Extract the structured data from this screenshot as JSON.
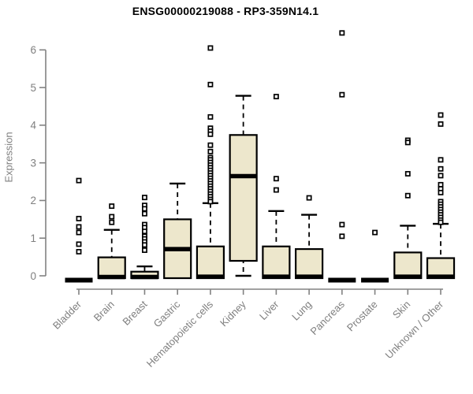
{
  "chart_data": {
    "type": "boxplot",
    "title": "ENSG00000219088 - RP3-359N14.1",
    "ylabel": "Expression",
    "xlabel": "",
    "ylim": [
      0,
      6.6
    ],
    "yticks": [
      0,
      1,
      2,
      3,
      4,
      5,
      6
    ],
    "grid": "off",
    "legend": "none",
    "categories": [
      "Bladder",
      "Brain",
      "Breast",
      "Gastric",
      "Hematopoietic cells",
      "Kidney",
      "Liver",
      "Lung",
      "Pancreas",
      "Prostate",
      "Skin",
      "Unknown / Other"
    ],
    "series": [
      {
        "name": "Bladder",
        "q1": 0,
        "median": 0,
        "q3": 0,
        "whisker_low": 0,
        "whisker_high": 0,
        "outliers": [
          2.53,
          1.52,
          1.3,
          1.15,
          0.84,
          0.64
        ]
      },
      {
        "name": "Brain",
        "q1": 0,
        "median": 0.02,
        "q3": 0.49,
        "whisker_low": 0,
        "whisker_high": 1.22,
        "outliers": [
          1.85,
          1.57,
          1.42
        ]
      },
      {
        "name": "Breast",
        "q1": 0,
        "median": 0.02,
        "q3": 0.11,
        "whisker_low": 0,
        "whisker_high": 0.25,
        "outliers": [
          2.08,
          1.87,
          1.78,
          1.65,
          1.36,
          1.28,
          1.18,
          1.05,
          0.98,
          0.9,
          0.82,
          0.68
        ]
      },
      {
        "name": "Gastric",
        "q1": 0,
        "median": 0.76,
        "q3": 1.5,
        "whisker_low": 0,
        "whisker_high": 2.45,
        "outliers": []
      },
      {
        "name": "Hematopoietic cells",
        "q1": 0,
        "median": 0.03,
        "q3": 0.78,
        "whisker_low": 0,
        "whisker_high": 1.93,
        "outliers": [
          6.05,
          5.08,
          4.22,
          3.92,
          3.84,
          3.76,
          3.47,
          3.3,
          3.14,
          3.08,
          3.01,
          2.94,
          2.87,
          2.8,
          2.73,
          2.66,
          2.59,
          2.52,
          2.45,
          2.38,
          2.31,
          2.24,
          2.17,
          2.1,
          2.03,
          1.97
        ]
      },
      {
        "name": "Kidney",
        "q1": 0.46,
        "median": 2.7,
        "q3": 3.74,
        "whisker_low": 0,
        "whisker_high": 4.78,
        "outliers": []
      },
      {
        "name": "Liver",
        "q1": 0,
        "median": 0.03,
        "q3": 0.78,
        "whisker_low": 0,
        "whisker_high": 1.72,
        "outliers": [
          4.76,
          2.58,
          2.28
        ]
      },
      {
        "name": "Lung",
        "q1": 0,
        "median": 0.03,
        "q3": 0.71,
        "whisker_low": 0,
        "whisker_high": 1.62,
        "outliers": [
          2.07
        ]
      },
      {
        "name": "Pancreas",
        "q1": 0,
        "median": 0,
        "q3": 0,
        "whisker_low": 0,
        "whisker_high": 0,
        "outliers": [
          6.45,
          4.81,
          1.36,
          1.05
        ]
      },
      {
        "name": "Prostate",
        "q1": 0,
        "median": 0,
        "q3": 0,
        "whisker_low": 0,
        "whisker_high": 0,
        "outliers": [
          1.15
        ]
      },
      {
        "name": "Skin",
        "q1": 0,
        "median": 0.03,
        "q3": 0.62,
        "whisker_low": 0,
        "whisker_high": 1.33,
        "outliers": [
          3.6,
          3.54,
          2.71,
          2.13
        ]
      },
      {
        "name": "Unknown / Other",
        "q1": 0,
        "median": 0.03,
        "q3": 0.47,
        "whisker_low": 0,
        "whisker_high": 1.38,
        "outliers": [
          4.27,
          4.03,
          3.08,
          2.84,
          2.66,
          2.42,
          2.31,
          2.21,
          1.97,
          1.9,
          1.83,
          1.76,
          1.69,
          1.62,
          1.55,
          1.48,
          1.42
        ]
      }
    ],
    "colors": {
      "box_fill": "#EDE7CC",
      "box_border": "#000000",
      "median": "#000000",
      "whisker": "#000000",
      "outlier_stroke": "#000000",
      "outlier_fill": "#ffffff",
      "axis": "#828282",
      "tick_label": "#7f7f7f",
      "title": "#000000"
    }
  }
}
